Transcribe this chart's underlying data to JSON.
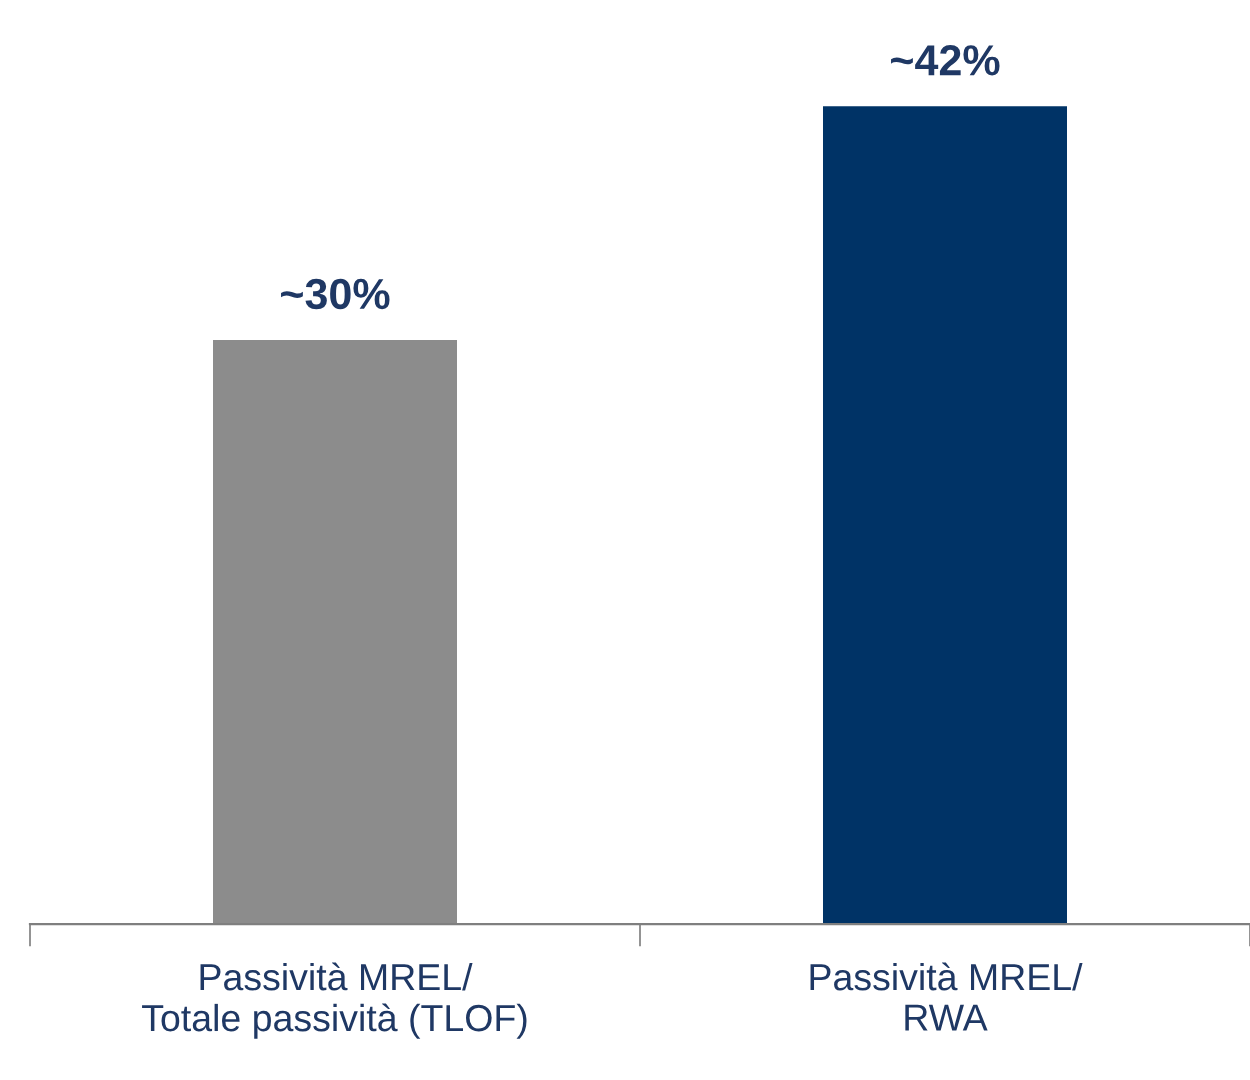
{
  "chart_data": {
    "type": "bar",
    "categories": [
      "Passività MREL/\nTotale passività (TLOF)",
      "Passività MREL/\nRWA"
    ],
    "values": [
      30,
      42
    ],
    "colors": [
      "#8c8c8c",
      "#003366"
    ],
    "value_labels": [
      "~30%",
      "~42%"
    ],
    "grid": false,
    "legend": false
  }
}
